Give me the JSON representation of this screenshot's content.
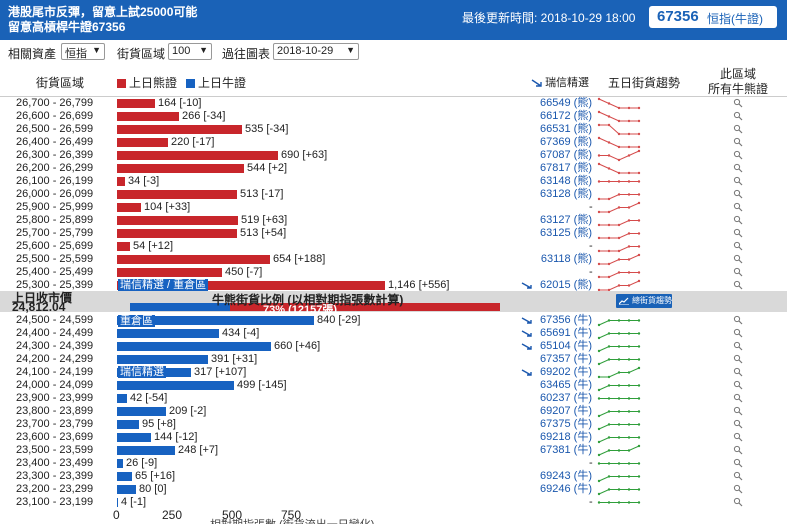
{
  "header": {
    "title_line1": "港股尾市反彈，留意上試25000可能",
    "title_line2": "留意高槓桿牛證67356",
    "update_label": "最後更新時間: 2018-10-29 18:00",
    "badge_code": "67356",
    "badge_sub": "恒指(牛證)"
  },
  "filters": {
    "asset_label": "相關資產",
    "asset_value": "恒指",
    "zone_label": "街貨區域",
    "zone_value": "100",
    "past_label": "過往圖表",
    "past_value": "2018-10-29"
  },
  "columns": {
    "zone": "街貨區域",
    "bear_legend": "上日熊證",
    "bull_legend": "上日牛證",
    "ruixin": "瑞信精選",
    "trend": "五日街貨趨勢",
    "right_l1": "此區域",
    "right_l2": "所有牛熊證"
  },
  "colors": {
    "bear": "#c8262b",
    "bull": "#1762c1",
    "header": "#1a62b7",
    "link": "#1a57ad"
  },
  "middle": {
    "close_label": "上日收市價",
    "close_value": "24,812.04",
    "ratio_title": "牛熊街貨比例 (以相對期指張數計算)",
    "bull_ratio_pct": 27,
    "bear_pct_text": "73% (12157張)",
    "trend_button": "總街貨趨勢"
  },
  "floating_labels": [
    "瑞信精選 / 重倉區",
    "重倉區",
    "瑞信精選"
  ],
  "axis": {
    "ticks": [
      "0",
      "250",
      "500",
      "750"
    ],
    "caption": "相對期指張數 (街貨流出一日變化)"
  },
  "bear_rows": [
    {
      "range": "26,700 - 26,799",
      "value": 164,
      "label": "164 [-10]",
      "code": "66549 (熊)",
      "trend": [
        1,
        2,
        3,
        3,
        3
      ]
    },
    {
      "range": "26,600 - 26,699",
      "value": 266,
      "label": "266 [-34]",
      "code": "66172 (熊)",
      "trend": [
        1,
        2,
        3,
        3,
        3
      ]
    },
    {
      "range": "26,500 - 26,599",
      "value": 535,
      "label": "535 [-34]",
      "code": "66531 (熊)",
      "trend": [
        1,
        1,
        3,
        3,
        3
      ]
    },
    {
      "range": "26,400 - 26,499",
      "value": 220,
      "label": "220 [-17]",
      "code": "67369 (熊)",
      "trend": [
        1,
        2,
        3,
        3,
        3
      ]
    },
    {
      "range": "26,300 - 26,399",
      "value": 690,
      "label": "690 [+63]",
      "code": "67087 (熊)",
      "trend": [
        2,
        2,
        3,
        2,
        1
      ]
    },
    {
      "range": "26,200 - 26,299",
      "value": 544,
      "label": "544 [+2]",
      "code": "67817 (熊)",
      "trend": [
        1,
        2,
        3,
        3,
        3
      ]
    },
    {
      "range": "26,100 - 26,199",
      "value": 34,
      "label": "34 [-3]",
      "code": "63148 (熊)",
      "trend": [
        2,
        2,
        2,
        2,
        2
      ]
    },
    {
      "range": "26,000 - 26,099",
      "value": 513,
      "label": "513 [-17]",
      "code": "63128 (熊)",
      "trend": [
        3,
        3,
        2,
        2,
        2
      ]
    },
    {
      "range": "25,900 - 25,999",
      "value": 104,
      "label": "104 [+33]",
      "code": "-",
      "trend": [
        3,
        3,
        2,
        2,
        1
      ]
    },
    {
      "range": "25,800 - 25,899",
      "value": 519,
      "label": "519 [+63]",
      "code": "63127 (熊)",
      "trend": [
        3,
        3,
        3,
        2,
        2
      ]
    },
    {
      "range": "25,700 - 25,799",
      "value": 513,
      "label": "513 [+54]",
      "code": "63125 (熊)",
      "trend": [
        3,
        3,
        3,
        2,
        2
      ]
    },
    {
      "range": "25,600 - 25,699",
      "value": 54,
      "label": "54 [+12]",
      "code": "-",
      "trend": [
        3,
        3,
        3,
        2,
        2
      ]
    },
    {
      "range": "25,500 - 25,599",
      "value": 654,
      "label": "654 [+188]",
      "code": "63118 (熊)",
      "trend": [
        3,
        3,
        2,
        2,
        1
      ]
    },
    {
      "range": "25,400 - 25,499",
      "value": 450,
      "label": "450 [-7]",
      "code": "-",
      "trend": [
        3,
        3,
        2,
        2,
        2
      ]
    },
    {
      "range": "25,300 - 25,399",
      "value": 1146,
      "label": "1,146 [+556]",
      "code": "62015 (熊)",
      "trend": [
        3,
        3,
        2,
        2,
        1
      ]
    }
  ],
  "bull_rows": [
    {
      "range": "24,500 - 24,599",
      "value": 840,
      "label": "840 [-29]",
      "code": "67356 (牛)",
      "trend": [
        3,
        2,
        2,
        2,
        2
      ]
    },
    {
      "range": "24,400 - 24,499",
      "value": 434,
      "label": "434 [-4]",
      "code": "65691 (牛)",
      "trend": [
        3,
        2,
        2,
        2,
        2
      ]
    },
    {
      "range": "24,300 - 24,399",
      "value": 660,
      "label": "660 [+46]",
      "code": "65104 (牛)",
      "trend": [
        3,
        2,
        2,
        2,
        2
      ]
    },
    {
      "range": "24,200 - 24,299",
      "value": 391,
      "label": "391 [+31]",
      "code": "67357 (牛)",
      "trend": [
        3,
        2,
        2,
        2,
        2
      ]
    },
    {
      "range": "24,100 - 24,199",
      "value": 317,
      "label": "317 [+107]",
      "code": "69202 (牛)",
      "trend": [
        3,
        3,
        2,
        2,
        1
      ]
    },
    {
      "range": "24,000 - 24,099",
      "value": 499,
      "label": "499 [-145]",
      "code": "63465 (牛)",
      "trend": [
        3,
        2,
        2,
        2,
        2
      ]
    },
    {
      "range": "23,900 - 23,999",
      "value": 42,
      "label": "42 [-54]",
      "code": "60237 (牛)",
      "trend": [
        2,
        2,
        2,
        2,
        2
      ]
    },
    {
      "range": "23,800 - 23,899",
      "value": 209,
      "label": "209 [-2]",
      "code": "69207 (牛)",
      "trend": [
        3,
        2,
        2,
        2,
        2
      ]
    },
    {
      "range": "23,700 - 23,799",
      "value": 95,
      "label": "95 [+8]",
      "code": "67375 (牛)",
      "trend": [
        3,
        2,
        2,
        2,
        2
      ]
    },
    {
      "range": "23,600 - 23,699",
      "value": 144,
      "label": "144 [-12]",
      "code": "69218 (牛)",
      "trend": [
        3,
        2,
        2,
        2,
        2
      ]
    },
    {
      "range": "23,500 - 23,599",
      "value": 248,
      "label": "248 [+7]",
      "code": "67381 (牛)",
      "trend": [
        3,
        2,
        2,
        2,
        1
      ]
    },
    {
      "range": "23,400 - 23,499",
      "value": 26,
      "label": "26 [-9]",
      "code": "-",
      "trend": [
        2,
        2,
        2,
        2,
        2
      ]
    },
    {
      "range": "23,300 - 23,399",
      "value": 65,
      "label": "65 [+16]",
      "code": "69243 (牛)",
      "trend": [
        3,
        2,
        2,
        2,
        2
      ]
    },
    {
      "range": "23,200 - 23,299",
      "value": 80,
      "label": "80 [0]",
      "code": "69246 (牛)",
      "trend": [
        3,
        2,
        2,
        2,
        2
      ]
    },
    {
      "range": "23,100 - 23,199",
      "value": 4,
      "label": "4 [-1]",
      "code": "-",
      "trend": [
        2,
        2,
        2,
        2,
        2
      ]
    }
  ]
}
